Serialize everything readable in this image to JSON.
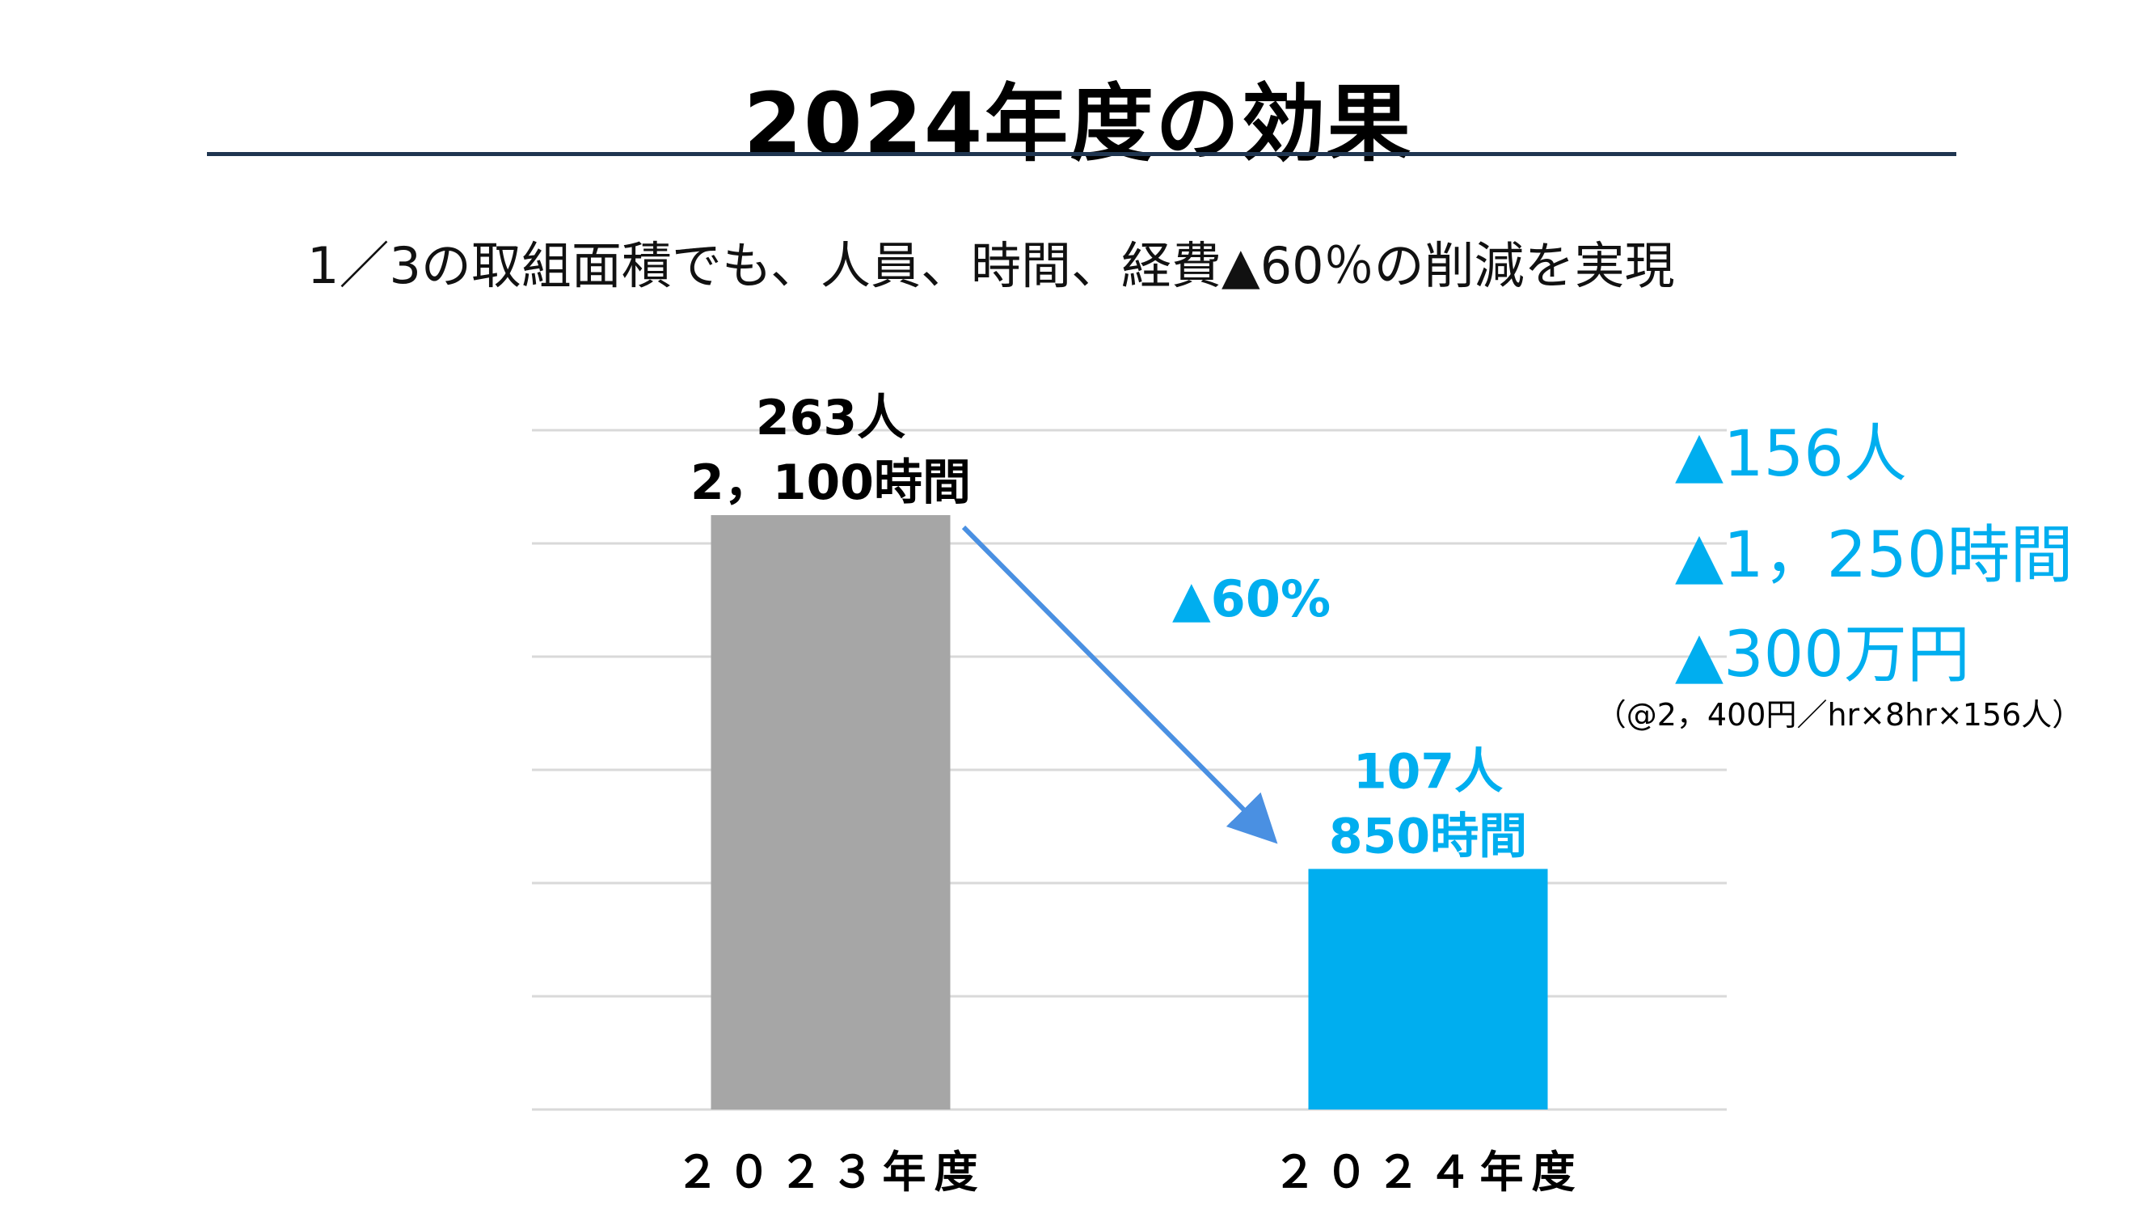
{
  "slide": {
    "title": "2024年度の効果",
    "subtitle": "1／3の取組面積でも、人員、時間、経費▲60％の削減を実現"
  },
  "chart_data": {
    "type": "bar",
    "categories": [
      "２０２３年度",
      "２０２４年度"
    ],
    "series": [
      {
        "name": "時間",
        "values": [
          2100,
          850
        ]
      }
    ],
    "ylim": [
      0,
      2400
    ],
    "grid": true,
    "bar_colors": [
      "#a6a6a6",
      "#00aeef"
    ],
    "data_labels": [
      {
        "line1": "263人",
        "line2": "2，100時間",
        "color": "#000000"
      },
      {
        "line1": "107人",
        "line2": "850時間",
        "color": "#00aeef"
      }
    ],
    "annotations": {
      "change": "▲60%",
      "summary": [
        "▲156人",
        "▲1，250時間",
        "▲300万円"
      ],
      "note": "（@2，400円／hr×8hr×156人）"
    },
    "accent_color": "#00aeef",
    "arrow_color": "#4a90e2"
  }
}
